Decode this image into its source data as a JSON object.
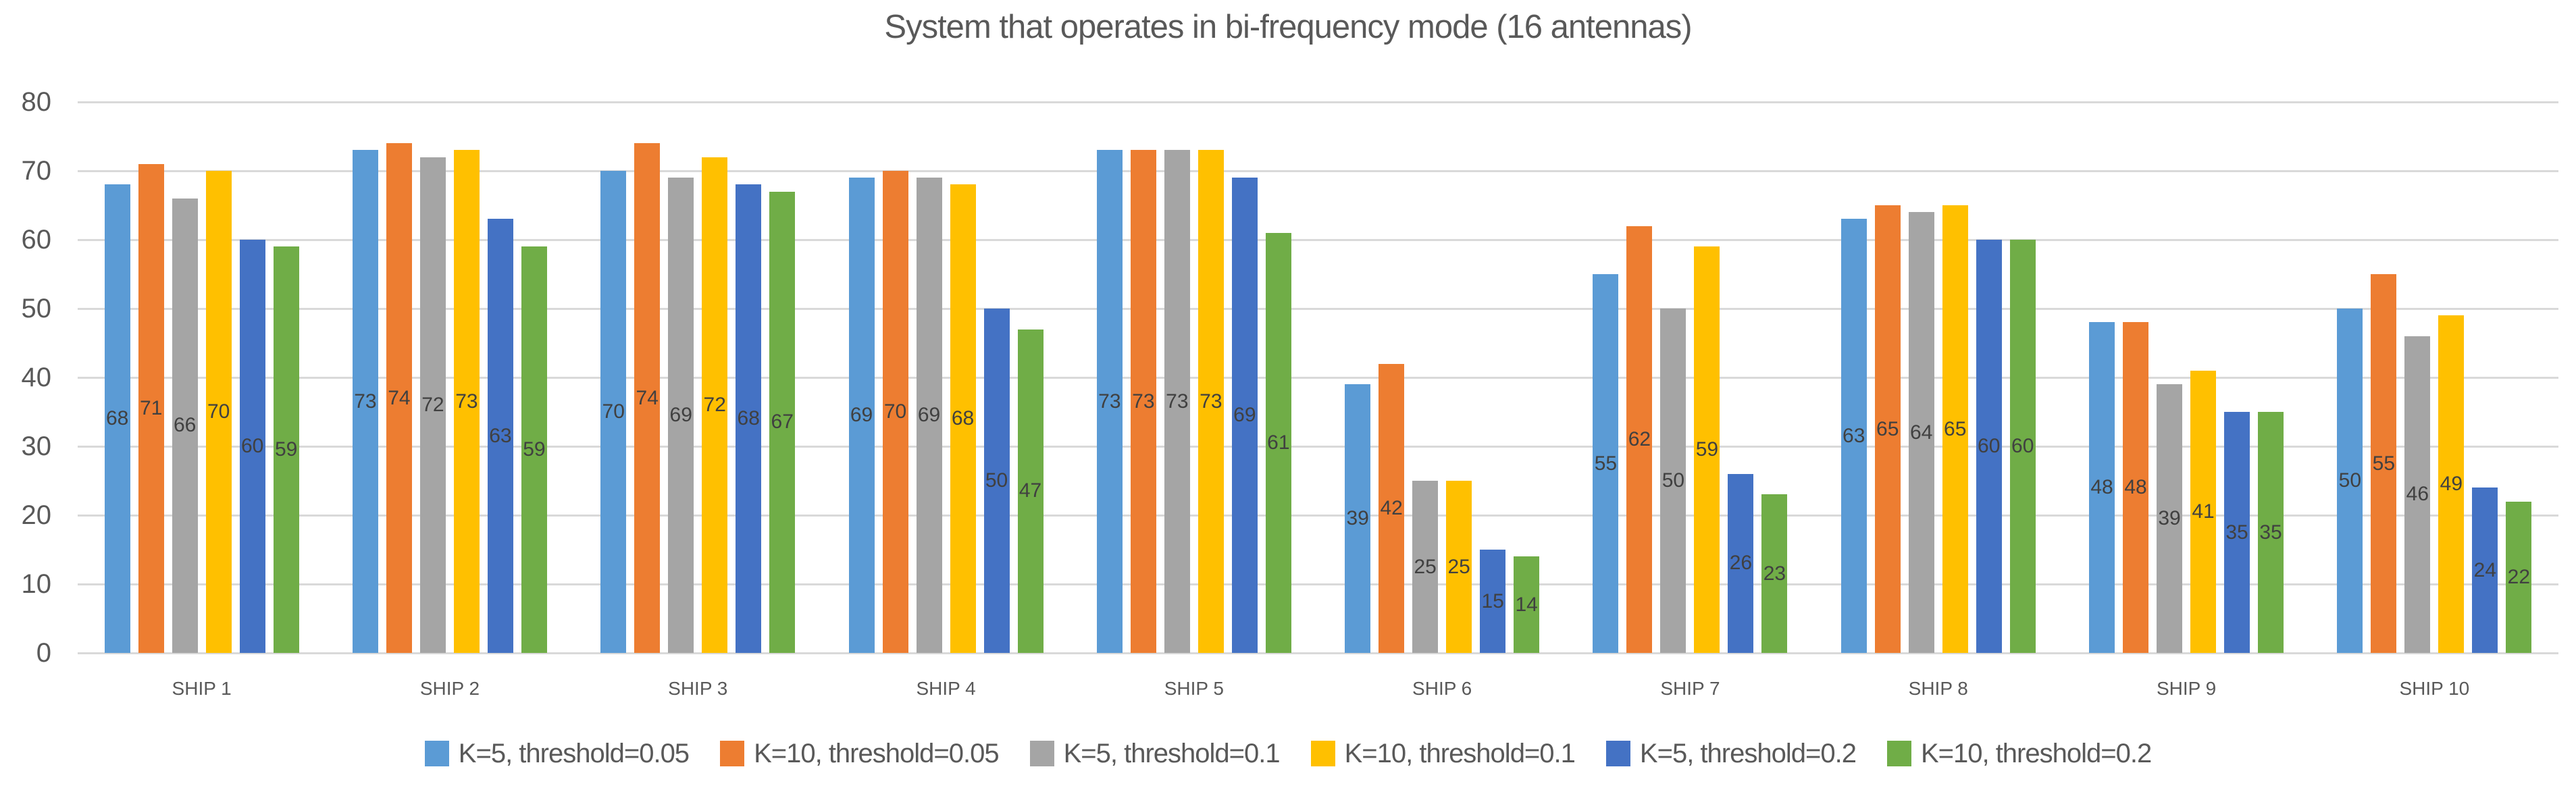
{
  "chart_data": {
    "type": "bar",
    "title": "System that operates in bi-frequency mode (16 antennas)",
    "categories": [
      "SHIP 1",
      "SHIP 2",
      "SHIP 3",
      "SHIP 4",
      "SHIP 5",
      "SHIP 6",
      "SHIP 7",
      "SHIP 8",
      "SHIP 9",
      "SHIP 10"
    ],
    "series": [
      {
        "name": "K=5, threshold=0.05",
        "color": "#5B9BD5",
        "values": [
          68,
          73,
          70,
          69,
          73,
          39,
          55,
          63,
          48,
          50
        ]
      },
      {
        "name": "K=10, threshold=0.05",
        "color": "#ED7D31",
        "values": [
          71,
          74,
          74,
          70,
          73,
          42,
          62,
          65,
          48,
          55
        ]
      },
      {
        "name": "K=5, threshold=0.1",
        "color": "#A5A5A5",
        "values": [
          66,
          72,
          69,
          69,
          73,
          25,
          50,
          64,
          39,
          46
        ]
      },
      {
        "name": "K=10, threshold=0.1",
        "color": "#FFC000",
        "values": [
          70,
          73,
          72,
          68,
          73,
          25,
          59,
          65,
          41,
          49
        ]
      },
      {
        "name": "K=5, threshold=0.2",
        "color": "#4472C4",
        "values": [
          60,
          63,
          68,
          50,
          69,
          15,
          26,
          60,
          35,
          24
        ]
      },
      {
        "name": "K=10, threshold=0.2",
        "color": "#70AD47",
        "values": [
          59,
          59,
          67,
          47,
          61,
          14,
          23,
          60,
          35,
          22
        ]
      }
    ],
    "ylim": [
      0,
      80
    ],
    "yticks": [
      0,
      10,
      20,
      30,
      40,
      50,
      60,
      70,
      80
    ],
    "grid": "horizontal-only",
    "legend_position": "bottom-center",
    "data_labels_position": "center",
    "colors": {
      "title_text": "#595959",
      "axis_text": "#595959",
      "data_label_text": "#404040",
      "gridline": "#D9D9D9",
      "background": "#FFFFFF"
    }
  }
}
